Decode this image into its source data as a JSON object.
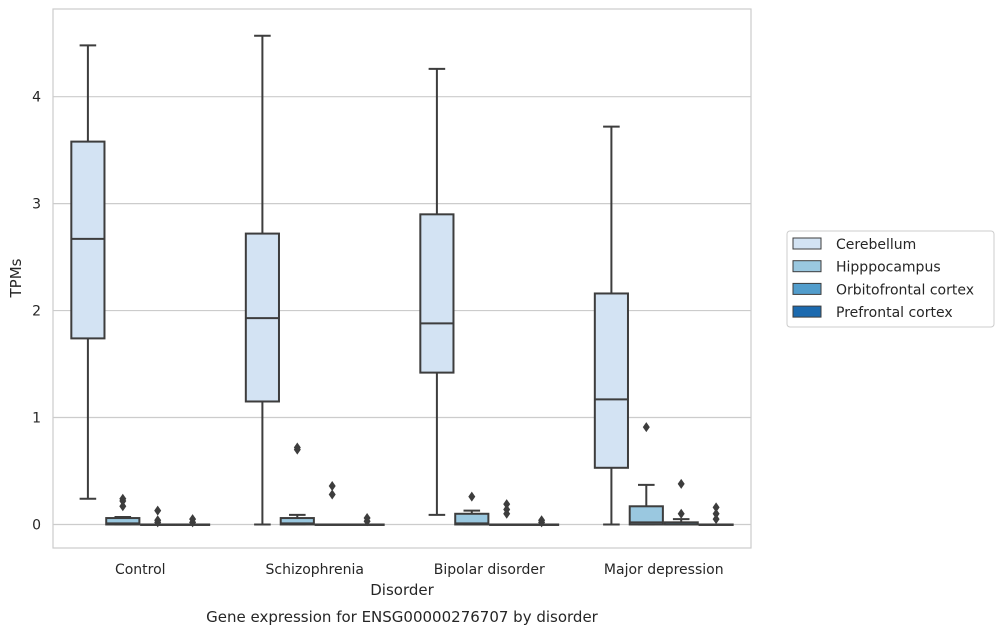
{
  "chart_data": {
    "type": "box",
    "title": "",
    "caption": "Gene expression for ENSG00000276707 by disorder",
    "xlabel": "Disorder",
    "ylabel": "TPMs",
    "ylim": [
      -0.22,
      4.82
    ],
    "yticks": [
      0,
      1,
      2,
      3,
      4
    ],
    "categories": [
      "Control",
      "Schizophrenia",
      "Bipolar disorder",
      "Major depression"
    ],
    "grid": "horizontal",
    "legend_position": "right",
    "series": [
      {
        "name": "Cerebellum",
        "color": "#d3e3f3",
        "boxes": [
          {
            "whislo": 0.24,
            "q1": 1.74,
            "med": 2.67,
            "q3": 3.58,
            "whishi": 4.48,
            "fliers": []
          },
          {
            "whislo": 0.0,
            "q1": 1.15,
            "med": 1.93,
            "q3": 2.72,
            "whishi": 4.57,
            "fliers": []
          },
          {
            "whislo": 0.09,
            "q1": 1.42,
            "med": 1.88,
            "q3": 2.9,
            "whishi": 4.26,
            "fliers": []
          },
          {
            "whislo": 0.0,
            "q1": 0.53,
            "med": 1.17,
            "q3": 2.16,
            "whishi": 3.72,
            "fliers": []
          }
        ]
      },
      {
        "name": "Hipppocampus",
        "color": "#9ac8e0",
        "boxes": [
          {
            "whislo": 0.0,
            "q1": 0.0,
            "med": 0.01,
            "q3": 0.06,
            "whishi": 0.07,
            "fliers": [
              0.24,
              0.22,
              0.17
            ]
          },
          {
            "whislo": 0.0,
            "q1": 0.0,
            "med": 0.01,
            "q3": 0.06,
            "whishi": 0.09,
            "fliers": [
              0.72,
              0.7
            ]
          },
          {
            "whislo": 0.0,
            "q1": 0.0,
            "med": 0.01,
            "q3": 0.1,
            "whishi": 0.13,
            "fliers": [
              0.26
            ]
          },
          {
            "whislo": 0.0,
            "q1": 0.0,
            "med": 0.02,
            "q3": 0.17,
            "whishi": 0.37,
            "fliers": [
              0.91
            ]
          }
        ]
      },
      {
        "name": "Orbitofrontal cortex",
        "color": "#529dcc",
        "boxes": [
          {
            "whislo": 0.0,
            "q1": 0.0,
            "med": 0.0,
            "q3": 0.0,
            "whishi": 0.0,
            "fliers": [
              0.13,
              0.04,
              0.02
            ]
          },
          {
            "whislo": 0.0,
            "q1": 0.0,
            "med": 0.0,
            "q3": 0.0,
            "whishi": 0.0,
            "fliers": [
              0.36,
              0.28
            ]
          },
          {
            "whislo": 0.0,
            "q1": 0.0,
            "med": 0.0,
            "q3": 0.0,
            "whishi": 0.0,
            "fliers": [
              0.19,
              0.14,
              0.1
            ]
          },
          {
            "whislo": 0.0,
            "q1": 0.0,
            "med": 0.0,
            "q3": 0.02,
            "whishi": 0.05,
            "fliers": [
              0.38,
              0.1
            ]
          }
        ]
      },
      {
        "name": "Prefrontal cortex",
        "color": "#1c6aaf",
        "boxes": [
          {
            "whislo": 0.0,
            "q1": 0.0,
            "med": 0.0,
            "q3": 0.0,
            "whishi": 0.0,
            "fliers": [
              0.05,
              0.02
            ]
          },
          {
            "whislo": 0.0,
            "q1": 0.0,
            "med": 0.0,
            "q3": 0.0,
            "whishi": 0.0,
            "fliers": [
              0.06,
              0.03
            ]
          },
          {
            "whislo": 0.0,
            "q1": 0.0,
            "med": 0.0,
            "q3": 0.0,
            "whishi": 0.0,
            "fliers": [
              0.04,
              0.02
            ]
          },
          {
            "whislo": 0.0,
            "q1": 0.0,
            "med": 0.0,
            "q3": 0.0,
            "whishi": 0.0,
            "fliers": [
              0.16,
              0.1,
              0.05
            ]
          }
        ]
      }
    ]
  }
}
